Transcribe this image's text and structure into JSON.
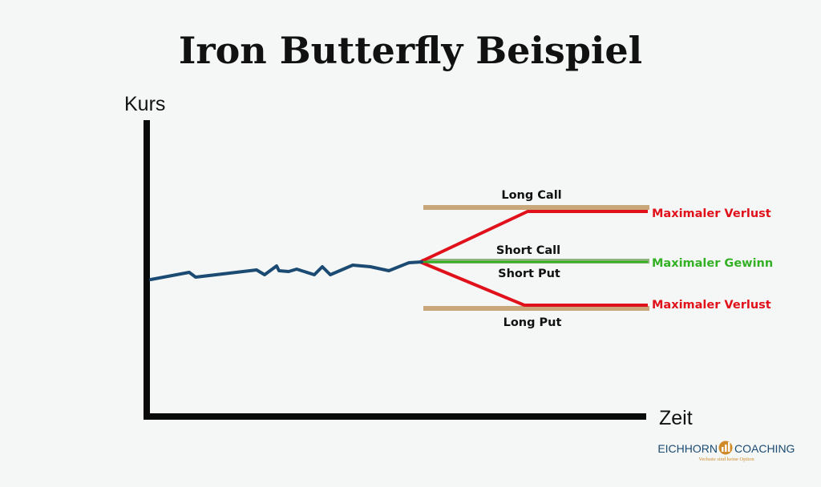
{
  "title": "Iron Butterfly Beispiel",
  "axes": {
    "y_label": "Kurs",
    "x_label": "Zeit"
  },
  "legs": {
    "long_call": "Long Call",
    "short_call": "Short Call",
    "short_put": "Short Put",
    "long_put": "Long Put"
  },
  "outcomes": {
    "max_loss_top": "Maximaler Verlust",
    "max_gain": "Maximaler Gewinn",
    "max_loss_bottom": "Maximaler Verlust"
  },
  "colors": {
    "price_line": "#1b4a72",
    "long_legs": "#c8a77a",
    "short_legs": "#8fb37a",
    "loss": "#e0111b",
    "gain": "#33b024",
    "axis": "#0a0a0a",
    "logo_brand": "#1b4a72",
    "logo_accent": "#d08a2a"
  },
  "logo": {
    "left_text": "EICHHORN",
    "right_text": "COACHING",
    "icon": "bar-chart-icon",
    "tagline": "Verluste sind keine Option"
  }
}
